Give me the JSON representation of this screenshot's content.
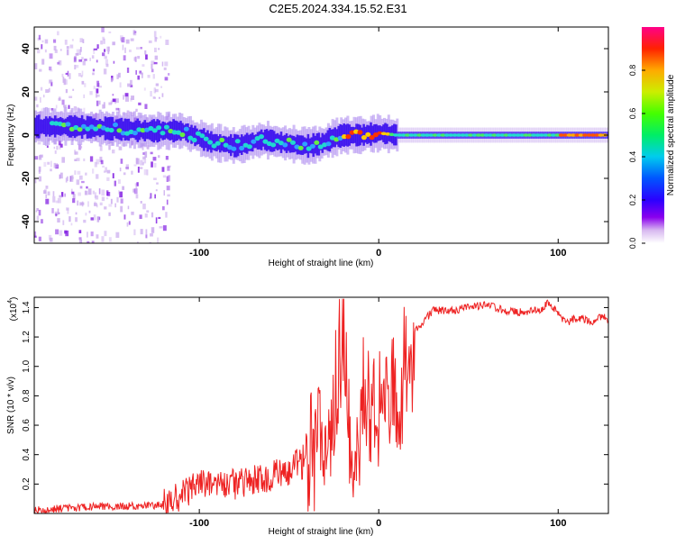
{
  "title": "C2E5.2024.334.15.52.E31",
  "chart_data": [
    {
      "type": "heatmap",
      "xlabel": "Height of straight line (km)",
      "ylabel": "Frequency (Hz)",
      "xlim": [
        -192,
        128
      ],
      "ylim": [
        -50,
        50
      ],
      "xticks": [
        "-100",
        "0",
        "100"
      ],
      "yticks": [
        "40",
        "20",
        "0",
        "-20",
        "-40"
      ],
      "colorbar": {
        "label": "Normalized spectral amplitude",
        "range": [
          0,
          1
        ],
        "ticks": [
          "0.0",
          "0.2",
          "0.4",
          "0.6",
          "0.8"
        ]
      },
      "ridge": {
        "x": [
          -190,
          -170,
          -150,
          -130,
          -110,
          -95,
          -80,
          -65,
          -50,
          -40,
          -33,
          -25,
          -20,
          -10,
          0,
          10,
          30,
          60,
          90,
          110,
          128
        ],
        "y": [
          4,
          4,
          3,
          2,
          2,
          -3,
          -5,
          -2,
          -4,
          -5,
          -4,
          -1,
          0,
          0,
          1,
          0,
          0,
          0,
          0,
          0,
          0
        ]
      },
      "grid": false
    },
    {
      "type": "line",
      "xlabel": "Height of straight line (km)",
      "ylabel": "SNR (10 * v/v)",
      "yscale_label": "(x10",
      "yscale_exp": "4",
      "xlim": [
        -192,
        128
      ],
      "ylim": [
        0,
        1.47
      ],
      "xticks": [
        "-100",
        "0",
        "100"
      ],
      "yticks": [
        "0.2",
        "0.4",
        "0.6",
        "0.8",
        "1.0",
        "1.2",
        "1.4"
      ],
      "series": [
        {
          "color": "#ee2222",
          "x": [
            -192,
            -170,
            -150,
            -130,
            -120,
            -110,
            -100,
            -90,
            -80,
            -70,
            -60,
            -50,
            -45,
            -40,
            -35,
            -30,
            -25,
            -22,
            -20,
            -18,
            -15,
            -12,
            -10,
            -8,
            -5,
            0,
            5,
            10,
            15,
            20,
            25,
            30,
            40,
            50,
            60,
            70,
            80,
            90,
            95,
            100,
            105,
            110,
            115,
            120,
            125,
            128
          ],
          "y": [
            0.02,
            0.04,
            0.05,
            0.05,
            0.06,
            0.12,
            0.2,
            0.2,
            0.2,
            0.22,
            0.25,
            0.3,
            0.35,
            0.45,
            0.55,
            0.7,
            0.8,
            1.1,
            1.45,
            0.95,
            0.6,
            0.55,
            0.85,
            0.95,
            0.9,
            0.85,
            0.8,
            0.9,
            1.1,
            1.25,
            1.3,
            1.38,
            1.38,
            1.4,
            1.42,
            1.38,
            1.37,
            1.38,
            1.44,
            1.35,
            1.3,
            1.33,
            1.32,
            1.3,
            1.35,
            1.28
          ]
        }
      ],
      "grid": false
    }
  ]
}
